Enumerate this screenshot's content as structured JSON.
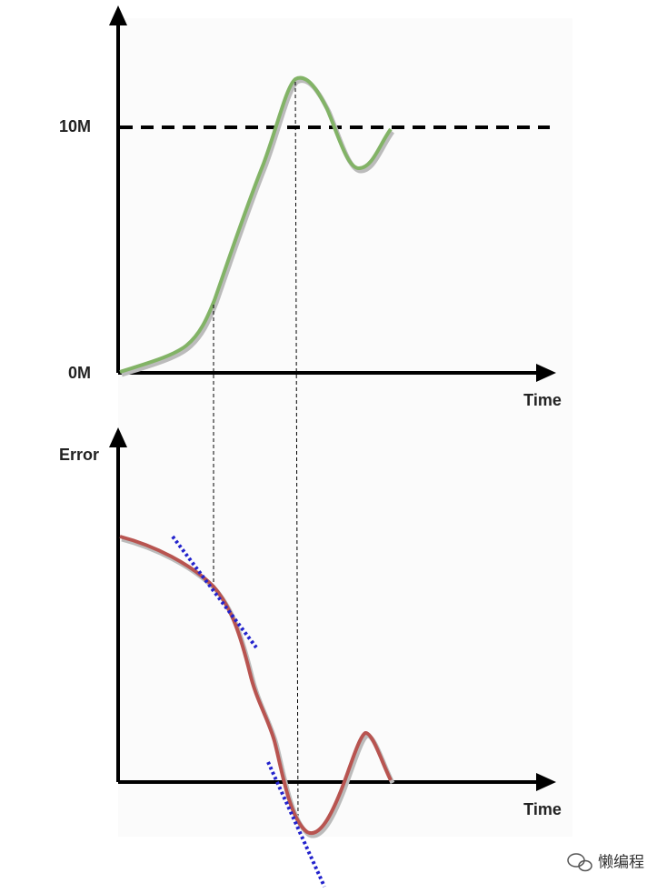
{
  "top_chart": {
    "y_labels": [
      "10M",
      "0M"
    ],
    "x_label": "Time"
  },
  "bottom_chart": {
    "y_label": "Error",
    "x_label": "Time"
  },
  "watermark": "懒编程"
}
